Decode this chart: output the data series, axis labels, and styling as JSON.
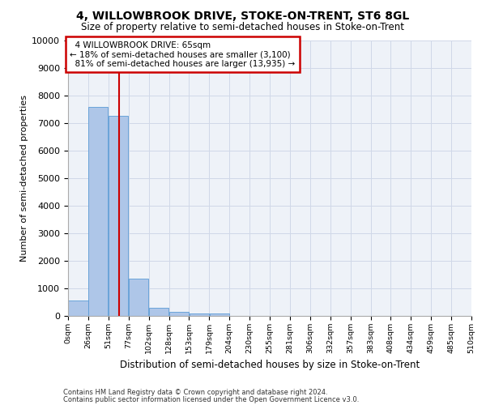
{
  "title": "4, WILLOWBROOK DRIVE, STOKE-ON-TRENT, ST6 8GL",
  "subtitle": "Size of property relative to semi-detached houses in Stoke-on-Trent",
  "xlabel": "Distribution of semi-detached houses by size in Stoke-on-Trent",
  "ylabel": "Number of semi-detached properties",
  "footer1": "Contains HM Land Registry data © Crown copyright and database right 2024.",
  "footer2": "Contains public sector information licensed under the Open Government Licence v3.0.",
  "property_size": 65,
  "property_label": "4 WILLOWBROOK DRIVE: 65sqm",
  "pct_smaller": 18,
  "pct_larger": 81,
  "n_smaller": 3100,
  "n_larger": 13935,
  "bin_edges": [
    0,
    25.5,
    51,
    76.5,
    102,
    127.5,
    153,
    178.5,
    204,
    229.5,
    255,
    280.5,
    306,
    331.5,
    357,
    382.5,
    408,
    433.5,
    459,
    484.5,
    510
  ],
  "bin_labels": [
    "0sqm",
    "26sqm",
    "51sqm",
    "77sqm",
    "102sqm",
    "128sqm",
    "153sqm",
    "179sqm",
    "204sqm",
    "230sqm",
    "255sqm",
    "281sqm",
    "306sqm",
    "332sqm",
    "357sqm",
    "383sqm",
    "408sqm",
    "434sqm",
    "459sqm",
    "485sqm",
    "510sqm"
  ],
  "bar_heights": [
    550,
    7600,
    7250,
    1350,
    300,
    150,
    100,
    75,
    0,
    0,
    0,
    0,
    0,
    0,
    0,
    0,
    0,
    0,
    0,
    0
  ],
  "bar_color": "#aec6e8",
  "bar_edge_color": "#5b9bd5",
  "red_line_color": "#cc0000",
  "box_color": "#cc0000",
  "grid_color": "#d0d8e8",
  "bg_color": "#eef2f8",
  "ylim": [
    0,
    10000
  ],
  "yticks": [
    0,
    1000,
    2000,
    3000,
    4000,
    5000,
    6000,
    7000,
    8000,
    9000,
    10000
  ]
}
